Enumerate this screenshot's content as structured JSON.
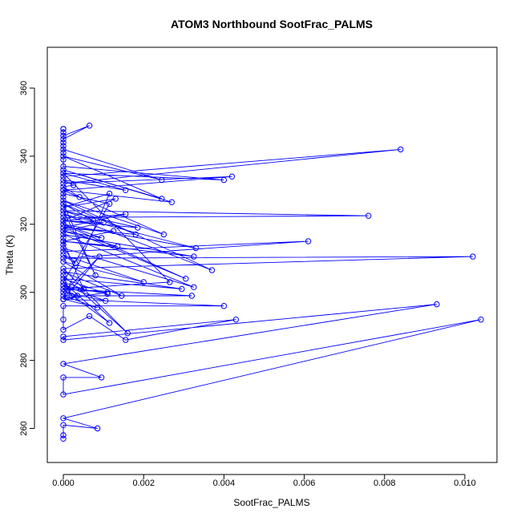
{
  "chart_data": {
    "type": "line",
    "title": "ATOM3 Northbound SootFrac_PALMS",
    "xlabel": "SootFrac_PALMS",
    "ylabel": "Theta (K)",
    "xlim": [
      -0.0004,
      0.0108
    ],
    "ylim": [
      250,
      372
    ],
    "x_ticks": [
      0.0,
      0.002,
      0.004,
      0.006,
      0.008,
      0.01
    ],
    "x_tick_labels": [
      "0.000",
      "0.002",
      "0.004",
      "0.006",
      "0.008",
      "0.010"
    ],
    "y_ticks": [
      260,
      280,
      300,
      320,
      340,
      360
    ],
    "y_tick_labels": [
      "260",
      "280",
      "300",
      "320",
      "340",
      "360"
    ],
    "grid": false,
    "marker": "open-circle",
    "series": [
      {
        "color": "#0000ff",
        "points": [
          [
            0.0,
            257
          ],
          [
            0.0,
            258
          ],
          [
            0.0,
            261
          ],
          [
            0.00085,
            260
          ],
          [
            0.0,
            263
          ],
          [
            0.0104,
            292
          ],
          [
            0.0,
            270
          ],
          [
            0.0,
            275
          ],
          [
            0.00095,
            275
          ],
          [
            0.0,
            279
          ],
          [
            0.0093,
            296.5
          ],
          [
            0.0,
            286
          ],
          [
            0.0,
            287
          ],
          [
            0.0043,
            292
          ],
          [
            0.00155,
            286
          ],
          [
            0.00065,
            293
          ],
          [
            0.0,
            289
          ],
          [
            0.0,
            292
          ],
          [
            0.0,
            296
          ],
          [
            0.004,
            296
          ],
          [
            0.0,
            298
          ],
          [
            0.00085,
            295.5
          ],
          [
            0.0,
            299
          ],
          [
            0.0032,
            299
          ],
          [
            0.0,
            301
          ],
          [
            0.00115,
            291
          ],
          [
            0.0,
            303
          ],
          [
            0.0002,
            299
          ],
          [
            0.0,
            305
          ],
          [
            0.0016,
            288
          ],
          [
            0.0,
            307
          ],
          [
            0.0102,
            310.5
          ],
          [
            0.0,
            310
          ],
          [
            0.0061,
            315
          ],
          [
            0.0,
            312
          ],
          [
            0.0,
            314
          ],
          [
            0.0,
            316
          ],
          [
            0.0,
            318
          ],
          [
            0.00095,
            316
          ],
          [
            0.0,
            320
          ],
          [
            0.0,
            322
          ],
          [
            0.0076,
            322.5
          ],
          [
            0.0,
            324
          ],
          [
            0.00075,
            321
          ],
          [
            0.0,
            326
          ],
          [
            0.0,
            328
          ],
          [
            0.0,
            330
          ],
          [
            0.0042,
            334
          ],
          [
            0.0,
            332
          ],
          [
            0.0084,
            342
          ],
          [
            0.0,
            334
          ],
          [
            0.0,
            335
          ],
          [
            0.004,
            333
          ],
          [
            0.0,
            337
          ],
          [
            0.0,
            339
          ],
          [
            0.0,
            341
          ],
          [
            0.0,
            343
          ],
          [
            0.0,
            344
          ],
          [
            0.0,
            345
          ],
          [
            0.00065,
            349
          ],
          [
            0.0,
            346
          ],
          [
            0.0,
            347
          ],
          [
            0.0,
            348
          ],
          [
            0.0,
            348
          ],
          [
            0.0,
            342
          ],
          [
            0.00245,
            333
          ],
          [
            0.0,
            340
          ],
          [
            0.00245,
            327.5
          ],
          [
            0.0,
            336
          ],
          [
            0.0027,
            326.5
          ],
          [
            0.0,
            330
          ],
          [
            0.0025,
            317
          ],
          [
            0.0,
            327
          ],
          [
            0.0037,
            306.5
          ],
          [
            0.0,
            323
          ],
          [
            0.0033,
            313
          ],
          [
            0.0,
            320
          ],
          [
            0.00305,
            304
          ],
          [
            0.0,
            319
          ],
          [
            0.00125,
            318
          ],
          [
            0.0,
            315
          ],
          [
            0.00325,
            310.5
          ],
          [
            0.0,
            317
          ],
          [
            0.00325,
            301.5
          ],
          [
            0.0,
            313
          ],
          [
            0.0003,
            308.5
          ],
          [
            0.0,
            311
          ],
          [
            0.002,
            303
          ],
          [
            0.0,
            309
          ],
          [
            0.00145,
            299
          ],
          [
            0.0,
            306
          ],
          [
            0.00295,
            301
          ],
          [
            0.0,
            304
          ],
          [
            0.0011,
            299.5
          ],
          [
            0.0,
            302
          ],
          [
            0.00105,
            297.5
          ],
          [
            0.0,
            300
          ],
          [
            0.0009,
            310.5
          ],
          [
            0.0,
            298
          ],
          [
            0.00115,
            329
          ],
          [
            0.0,
            325
          ],
          [
            0.0013,
            327.5
          ],
          [
            0.0,
            321
          ],
          [
            0.00155,
            323
          ],
          [
            0.0,
            319
          ],
          [
            0.0018,
            317
          ],
          [
            0.0,
            326
          ],
          [
            0.0008,
            305
          ],
          [
            0.0,
            324
          ],
          [
            0.00185,
            319
          ],
          [
            0.0,
            321
          ],
          [
            0.001,
            320.5
          ],
          [
            0.0,
            318
          ],
          [
            0.00135,
            313.5
          ],
          [
            0.0,
            315
          ],
          [
            0.0005,
            301
          ],
          [
            0.0,
            303
          ],
          [
            0.00115,
            326
          ],
          [
            0.0,
            329
          ],
          [
            0.0004,
            328
          ],
          [
            0.0,
            331
          ],
          [
            0.00025,
            331.5
          ],
          [
            0.0,
            333
          ],
          [
            0.00155,
            330
          ],
          [
            0.0,
            335
          ],
          [
            0.00265,
            303
          ],
          [
            0.0,
            301
          ],
          [
            0.0011,
            300
          ],
          [
            0.0,
            298
          ],
          [
            0.00035,
            299
          ]
        ]
      }
    ]
  }
}
